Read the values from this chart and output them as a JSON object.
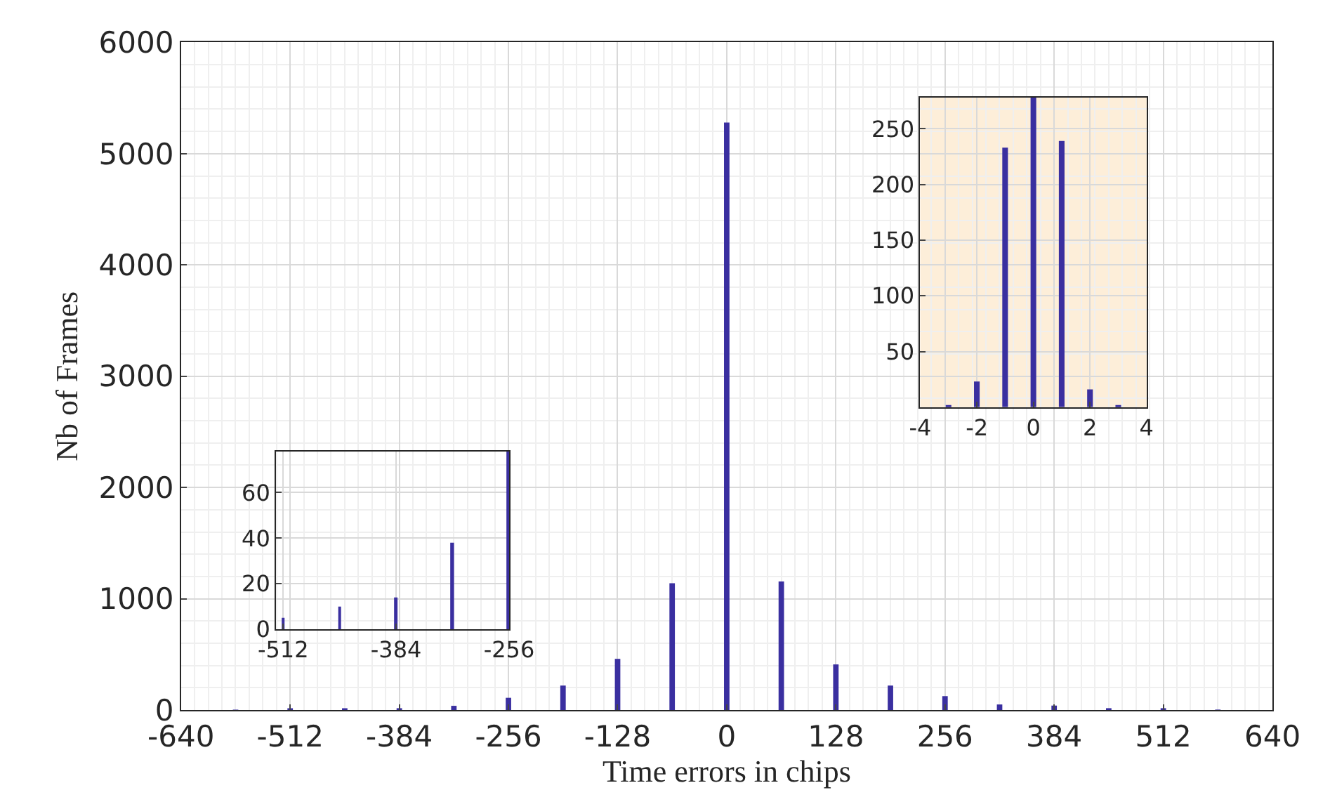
{
  "chart_data": [
    {
      "type": "bar",
      "xlabel": "Time errors in chips",
      "ylabel": "Nb of Frames",
      "color": "#3a2fa0",
      "x": [
        -576,
        -512,
        -448,
        -384,
        -320,
        -256,
        -192,
        -128,
        -64,
        0,
        64,
        128,
        192,
        256,
        320,
        384,
        448,
        512,
        576
      ],
      "values": [
        3,
        5,
        10,
        14,
        38,
        110,
        220,
        460,
        1140,
        5280,
        1155,
        410,
        220,
        125,
        50,
        40,
        15,
        8,
        3
      ],
      "xlim": [
        -640,
        640
      ],
      "ylim": [
        0,
        6000
      ],
      "xticks": [
        -640,
        -512,
        -384,
        -256,
        -128,
        0,
        128,
        256,
        384,
        512,
        640
      ],
      "yticks": [
        0,
        1000,
        2000,
        3000,
        4000,
        5000,
        6000
      ],
      "grid": true
    },
    {
      "type": "bar",
      "color": "#3a2fa0",
      "x": [
        -512,
        -448,
        -384,
        -320,
        -256
      ],
      "values": [
        5,
        10,
        14,
        38,
        78
      ],
      "xlim": [
        -520,
        -256
      ],
      "ylim": [
        0,
        78
      ],
      "xticks": [
        -512,
        -384,
        -256
      ],
      "yticks": [
        0,
        20,
        40,
        60
      ],
      "grid": true
    },
    {
      "type": "bar",
      "color": "#3a2fa0",
      "x": [
        -3,
        -2,
        -1,
        0,
        1,
        2,
        3
      ],
      "values": [
        2,
        23,
        233,
        278,
        239,
        16,
        2
      ],
      "xlim": [
        -4,
        4
      ],
      "ylim": [
        0,
        278
      ],
      "xticks": [
        -4,
        -2,
        0,
        2,
        4
      ],
      "yticks": [
        50,
        100,
        150,
        200,
        250
      ],
      "grid": true
    }
  ]
}
